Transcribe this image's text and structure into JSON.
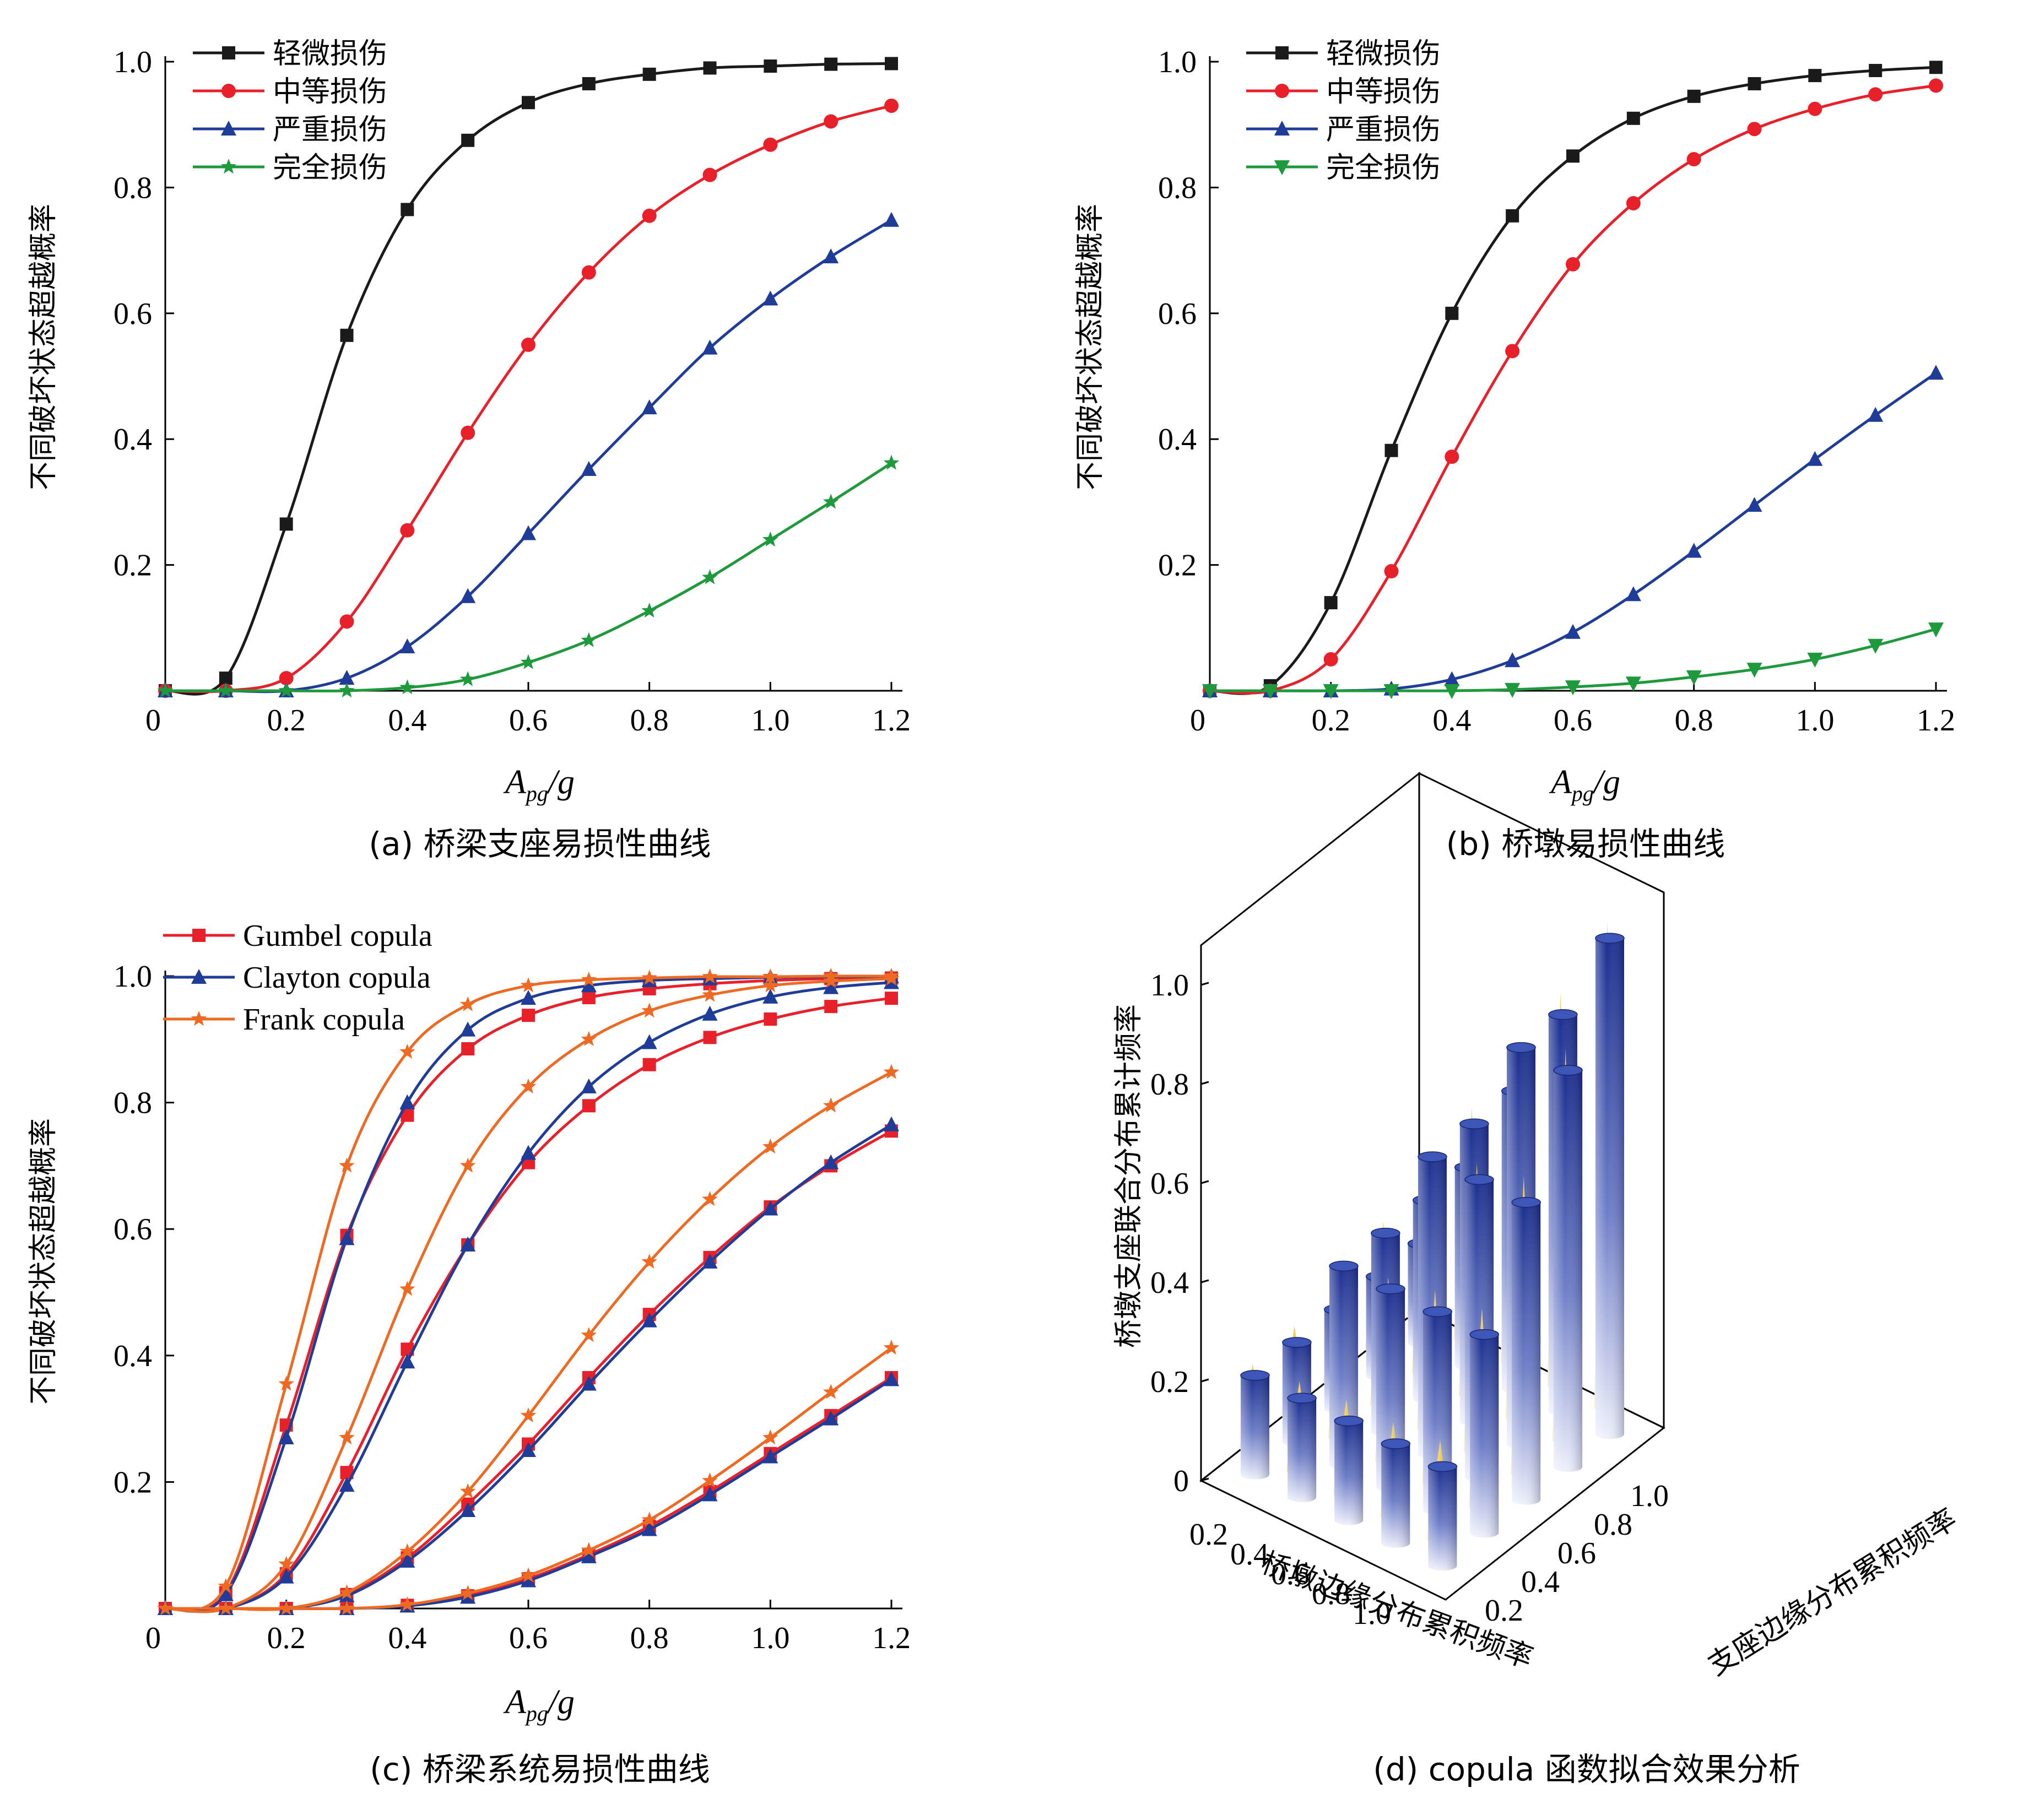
{
  "colors": {
    "black": "#1a1a1a",
    "red": "#e8202a",
    "blue": "#1f3c99",
    "green": "#1e9a3c",
    "orange": "#ee6a22",
    "gold": "#e9c23c",
    "axis": "#000000"
  },
  "panels": {
    "a": {
      "caption": "(a) 桥梁支座易损性曲线",
      "ylabel": "不同破坏状态超越概率",
      "xlabel_main": "A",
      "xlabel_sub": "pg",
      "xlabel_tail": "/g",
      "legend": [
        "轻微损伤",
        "中等损伤",
        "严重损伤",
        "完全损伤"
      ]
    },
    "b": {
      "caption": "(b) 桥墩易损性曲线",
      "ylabel": "不同破坏状态超越概率",
      "xlabel_main": "A",
      "xlabel_sub": "pg",
      "xlabel_tail": "/g",
      "legend": [
        "轻微损伤",
        "中等损伤",
        "严重损伤",
        "完全损伤"
      ]
    },
    "c": {
      "caption": "(c) 桥梁系统易损性曲线",
      "ylabel": "不同破坏状态超越概率",
      "xlabel_main": "A",
      "xlabel_sub": "pg",
      "xlabel_tail": "/g",
      "legend": [
        "Gumbel copula",
        "Clayton copula",
        "Frank copula"
      ]
    },
    "d": {
      "caption": "(d) copula 函数拟合效果分析",
      "zlabel": "桥墩支座联合分布累计频率",
      "xlabel": "桥墩边缘分布累积频率",
      "ylabel": "支座边缘分布累积频率"
    }
  },
  "chart_data": [
    {
      "id": "a",
      "type": "line",
      "xlim": [
        0,
        1.2
      ],
      "ylim": [
        0,
        1.0
      ],
      "xticks": [
        "0",
        "0.2",
        "0.4",
        "0.6",
        "0.8",
        "1.0",
        "1.2"
      ],
      "yticks": [
        "0.2",
        "0.4",
        "0.6",
        "0.8",
        "1.0"
      ],
      "x": [
        0,
        0.1,
        0.2,
        0.3,
        0.4,
        0.5,
        0.6,
        0.7,
        0.8,
        0.9,
        1.0,
        1.1,
        1.2
      ],
      "series": [
        {
          "name": "轻微损伤",
          "marker": "square",
          "color": "black",
          "values": [
            0,
            0.02,
            0.265,
            0.565,
            0.765,
            0.875,
            0.935,
            0.965,
            0.98,
            0.99,
            0.993,
            0.996,
            0.997
          ]
        },
        {
          "name": "中等损伤",
          "marker": "circle",
          "color": "red",
          "values": [
            0,
            0.0,
            0.02,
            0.11,
            0.255,
            0.41,
            0.55,
            0.665,
            0.755,
            0.82,
            0.868,
            0.905,
            0.93
          ]
        },
        {
          "name": "严重损伤",
          "marker": "triangle-up",
          "color": "blue",
          "values": [
            0,
            0.0,
            0.0,
            0.02,
            0.07,
            0.15,
            0.25,
            0.352,
            0.45,
            0.545,
            0.623,
            0.69,
            0.748
          ]
        },
        {
          "name": "完全损伤",
          "marker": "star",
          "color": "green",
          "values": [
            0,
            0.0,
            0.0,
            0.0,
            0.005,
            0.018,
            0.045,
            0.08,
            0.127,
            0.18,
            0.24,
            0.3,
            0.362
          ]
        }
      ]
    },
    {
      "id": "b",
      "type": "line",
      "xlim": [
        0,
        1.2
      ],
      "ylim": [
        0,
        1.0
      ],
      "xticks": [
        "0",
        "0.2",
        "0.4",
        "0.6",
        "0.8",
        "1.0",
        "1.2"
      ],
      "yticks": [
        "0.2",
        "0.4",
        "0.6",
        "0.8",
        "1.0"
      ],
      "x": [
        0,
        0.1,
        0.2,
        0.3,
        0.4,
        0.5,
        0.6,
        0.7,
        0.8,
        0.9,
        1.0,
        1.1,
        1.2
      ],
      "series": [
        {
          "name": "轻微损伤",
          "marker": "square",
          "color": "black",
          "values": [
            0,
            0.008,
            0.14,
            0.382,
            0.6,
            0.755,
            0.85,
            0.91,
            0.945,
            0.965,
            0.978,
            0.986,
            0.991
          ]
        },
        {
          "name": "中等损伤",
          "marker": "circle",
          "color": "red",
          "values": [
            0,
            0.0,
            0.05,
            0.19,
            0.372,
            0.54,
            0.678,
            0.775,
            0.845,
            0.893,
            0.925,
            0.948,
            0.962
          ]
        },
        {
          "name": "严重损伤",
          "marker": "triangle-up",
          "color": "blue",
          "values": [
            0,
            0.0,
            0.0,
            0.003,
            0.018,
            0.048,
            0.093,
            0.153,
            0.222,
            0.295,
            0.368,
            0.438,
            0.505
          ]
        },
        {
          "name": "完全损伤",
          "marker": "triangle-down",
          "color": "green",
          "values": [
            0,
            0.0,
            0.0,
            0.0,
            0.0,
            0.002,
            0.006,
            0.012,
            0.022,
            0.034,
            0.05,
            0.072,
            0.098
          ]
        }
      ]
    },
    {
      "id": "c",
      "type": "line",
      "xlim": [
        0,
        1.2
      ],
      "ylim": [
        0,
        1.0
      ],
      "xticks": [
        "0",
        "0.2",
        "0.4",
        "0.6",
        "0.8",
        "1.0",
        "1.2"
      ],
      "yticks": [
        "0.2",
        "0.4",
        "0.6",
        "0.8",
        "1.0"
      ],
      "x": [
        0,
        0.1,
        0.2,
        0.3,
        0.4,
        0.5,
        0.6,
        0.7,
        0.8,
        0.9,
        1.0,
        1.1,
        1.2
      ],
      "groups": [
        {
          "state": 1,
          "series": [
            {
              "name": "Gumbel copula",
              "marker": "square",
              "color": "red",
              "values": [
                0,
                0.025,
                0.29,
                0.59,
                0.78,
                0.885,
                0.938,
                0.966,
                0.98,
                0.988,
                0.993,
                0.996,
                0.997
              ]
            },
            {
              "name": "Clayton copula",
              "marker": "triangle-up",
              "color": "blue",
              "values": [
                0,
                0.022,
                0.27,
                0.585,
                0.8,
                0.915,
                0.965,
                0.985,
                0.993,
                0.996,
                0.998,
                0.999,
                0.999
              ]
            },
            {
              "name": "Frank copula",
              "marker": "star",
              "color": "orange",
              "values": [
                0,
                0.035,
                0.355,
                0.7,
                0.88,
                0.955,
                0.985,
                0.994,
                0.997,
                0.999,
                0.999,
                1.0,
                1.0
              ]
            }
          ]
        },
        {
          "state": 2,
          "series": [
            {
              "name": "Gumbel copula",
              "marker": "square",
              "color": "red",
              "values": [
                0,
                0.0,
                0.055,
                0.215,
                0.41,
                0.575,
                0.705,
                0.795,
                0.86,
                0.903,
                0.932,
                0.952,
                0.965
              ]
            },
            {
              "name": "Clayton copula",
              "marker": "triangle-up",
              "color": "blue",
              "values": [
                0,
                0.0,
                0.05,
                0.195,
                0.39,
                0.575,
                0.72,
                0.825,
                0.895,
                0.94,
                0.967,
                0.982,
                0.99
              ]
            },
            {
              "name": "Frank copula",
              "marker": "star",
              "color": "orange",
              "values": [
                0,
                0.0,
                0.07,
                0.27,
                0.505,
                0.7,
                0.825,
                0.9,
                0.945,
                0.97,
                0.985,
                0.992,
                0.996
              ]
            }
          ]
        },
        {
          "state": 3,
          "series": [
            {
              "name": "Gumbel copula",
              "marker": "square",
              "color": "red",
              "values": [
                0,
                0.0,
                0.0,
                0.022,
                0.08,
                0.165,
                0.26,
                0.365,
                0.465,
                0.555,
                0.635,
                0.7,
                0.755
              ]
            },
            {
              "name": "Clayton copula",
              "marker": "triangle-up",
              "color": "blue",
              "values": [
                0,
                0.0,
                0.0,
                0.02,
                0.075,
                0.155,
                0.25,
                0.355,
                0.455,
                0.548,
                0.632,
                0.705,
                0.765
              ]
            },
            {
              "name": "Frank copula",
              "marker": "star",
              "color": "orange",
              "values": [
                0,
                0.0,
                0.0,
                0.025,
                0.09,
                0.185,
                0.305,
                0.432,
                0.548,
                0.647,
                0.73,
                0.795,
                0.848
              ]
            }
          ]
        },
        {
          "state": 4,
          "series": [
            {
              "name": "Gumbel copula",
              "marker": "square",
              "color": "red",
              "values": [
                0,
                0.0,
                0.0,
                0.0,
                0.005,
                0.02,
                0.047,
                0.085,
                0.13,
                0.185,
                0.245,
                0.305,
                0.365
              ]
            },
            {
              "name": "Clayton copula",
              "marker": "triangle-up",
              "color": "blue",
              "values": [
                0,
                0.0,
                0.0,
                0.0,
                0.004,
                0.018,
                0.044,
                0.082,
                0.125,
                0.18,
                0.24,
                0.3,
                0.362
              ]
            },
            {
              "name": "Frank copula",
              "marker": "star",
              "color": "orange",
              "values": [
                0,
                0.0,
                0.0,
                0.0,
                0.006,
                0.024,
                0.052,
                0.092,
                0.14,
                0.202,
                0.27,
                0.342,
                0.412
              ]
            }
          ]
        }
      ]
    },
    {
      "id": "d",
      "type": "bar3d",
      "zlim": [
        0,
        1.0
      ],
      "zticks": [
        "0",
        "0.2",
        "0.4",
        "0.6",
        "0.8",
        "1.0"
      ],
      "xticks": [
        "1.0",
        "0.8",
        "0.6",
        "0.4",
        "0.2"
      ],
      "yticks": [
        "0.2",
        "0.4",
        "0.6",
        "0.8",
        "1.0"
      ],
      "grid_levels": [
        0.2,
        0.4,
        0.6,
        0.8,
        1.0
      ],
      "empirical_cylinders": [
        [
          0.2,
          0.2,
          0.2,
          0.2,
          0.2
        ],
        [
          0.2,
          0.4,
          0.4,
          0.4,
          0.4
        ],
        [
          0.2,
          0.4,
          0.6,
          0.6,
          0.6
        ],
        [
          0.2,
          0.4,
          0.6,
          0.8,
          0.8
        ],
        [
          0.2,
          0.4,
          0.6,
          0.8,
          1.0
        ]
      ],
      "copula_cones": [
        [
          0.17,
          0.18,
          0.19,
          0.19,
          0.2
        ],
        [
          0.18,
          0.33,
          0.37,
          0.39,
          0.4
        ],
        [
          0.19,
          0.37,
          0.55,
          0.58,
          0.6
        ],
        [
          0.19,
          0.39,
          0.58,
          0.76,
          0.79
        ],
        [
          0.2,
          0.4,
          0.6,
          0.79,
          0.98
        ]
      ]
    }
  ]
}
